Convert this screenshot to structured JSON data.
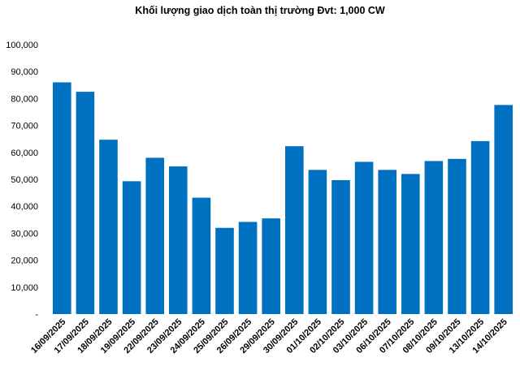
{
  "chart_data": {
    "type": "bar",
    "title": "Khối lượng giao dịch toàn thị trường Đvt: 1,000 CW",
    "xlabel": "",
    "ylabel": "",
    "ylim": [
      0,
      100000
    ],
    "yticks": [
      0,
      10000,
      20000,
      30000,
      40000,
      50000,
      60000,
      70000,
      80000,
      90000,
      100000
    ],
    "ytick_labels": [
      "-",
      "10,000",
      "20,000",
      "30,000",
      "40,000",
      "50,000",
      "60,000",
      "70,000",
      "80,000",
      "90,000",
      "100,000"
    ],
    "grid": false,
    "legend": "none",
    "bar_color": "#0070C0",
    "categories": [
      "16/09/2025",
      "17/09/2025",
      "18/09/2025",
      "19/09/2025",
      "22/09/2025",
      "23/09/2025",
      "24/09/2025",
      "25/09/2025",
      "26/09/2025",
      "29/09/2025",
      "30/09/2025",
      "01/10/2025",
      "02/10/2025",
      "03/10/2025",
      "06/10/2025",
      "07/10/2025",
      "08/10/2025",
      "09/10/2025",
      "13/10/2025",
      "14/10/2025"
    ],
    "values": [
      86000,
      82500,
      64700,
      49300,
      58000,
      54800,
      43200,
      32000,
      34200,
      35500,
      62300,
      53500,
      49700,
      56500,
      53500,
      52000,
      56800,
      57600,
      64200,
      77600
    ]
  }
}
